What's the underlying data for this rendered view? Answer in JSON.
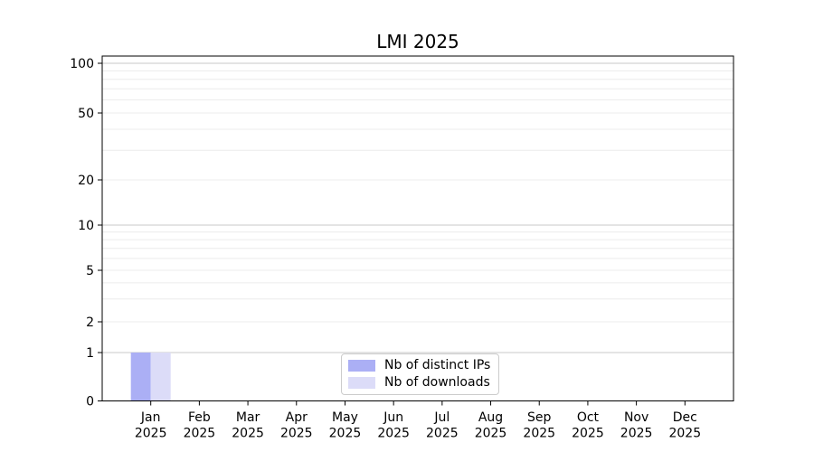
{
  "chart_data": {
    "type": "bar",
    "title": "LMI 2025",
    "categories": [
      "Jan 2025",
      "Feb 2025",
      "Mar 2025",
      "Apr 2025",
      "May 2025",
      "Jun 2025",
      "Jul 2025",
      "Aug 2025",
      "Sep 2025",
      "Oct 2025",
      "Nov 2025",
      "Dec 2025"
    ],
    "series": [
      {
        "name": "Nb of distinct IPs",
        "color": "#abaff5",
        "values": [
          1,
          0,
          0,
          0,
          0,
          0,
          0,
          0,
          0,
          0,
          0,
          0
        ]
      },
      {
        "name": "Nb of downloads",
        "color": "#dcdcf8",
        "values": [
          1,
          0,
          0,
          0,
          0,
          0,
          0,
          0,
          0,
          0,
          0,
          0
        ]
      }
    ],
    "yscale": "log",
    "yticks": [
      0,
      1,
      2,
      5,
      10,
      20,
      50,
      100
    ],
    "ylim": [
      0,
      110
    ],
    "xlabel": "",
    "ylabel": "",
    "grid": true,
    "legend_position": "lower center",
    "colors": {
      "major_grid": "#c9c9c9",
      "minor_grid": "#ececec",
      "axis": "#000000",
      "legend_border": "#cccccc"
    }
  }
}
